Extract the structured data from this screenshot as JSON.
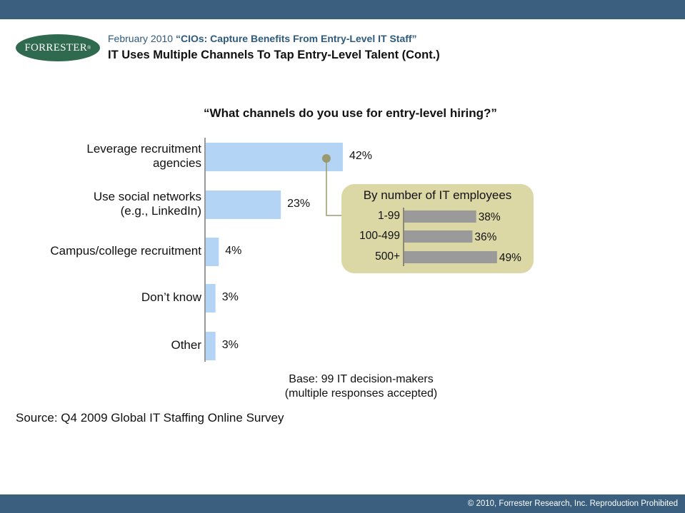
{
  "header": {
    "date": "February 2010",
    "report_title": "“CIOs: Capture Benefits From Entry-Level IT Staff”",
    "slide_title": "IT Uses Multiple Channels To Tap Entry-Level Talent (Cont.)"
  },
  "logo": {
    "text": "FORRESTER",
    "mark": "®"
  },
  "chart_data": [
    {
      "type": "bar",
      "orientation": "horizontal",
      "title": "“What channels do you use for entry-level hiring?”",
      "categories": [
        [
          "Leverage recruitment",
          "agencies"
        ],
        [
          "Use social networks",
          "(e.g., LinkedIn)"
        ],
        [
          "Campus/college recruitment"
        ],
        [
          "Don’t know"
        ],
        [
          "Other"
        ]
      ],
      "values": [
        42,
        23,
        4,
        3,
        3
      ],
      "value_labels": [
        "42%",
        "23%",
        "4%",
        "3%",
        "3%"
      ],
      "unit": "%",
      "bar_color": "#b3d4f5",
      "grid": false,
      "legend": "none"
    },
    {
      "type": "bar",
      "orientation": "horizontal",
      "title": "By number of IT employees",
      "categories": [
        "1-99",
        "100-499",
        "500+"
      ],
      "values": [
        38,
        36,
        49
      ],
      "value_labels": [
        "38%",
        "36%",
        "49%"
      ],
      "unit": "%",
      "bar_color": "#9a9a9a",
      "panel_color": "#dcd8a6",
      "callout_from": "Leverage recruitment agencies",
      "grid": false,
      "legend": "none"
    }
  ],
  "base_note": [
    "Base: 99 IT decision-makers",
    "(multiple responses accepted)"
  ],
  "source": "Source: Q4 2009 Global IT Staffing Online Survey",
  "footer": {
    "copyright": "© 2010, Forrester Research, Inc. Reproduction Prohibited"
  },
  "colors": {
    "bar_accent": "#3b5f7e",
    "header_blue": "#2e5a7c",
    "callout_dot": "#9a9a72"
  }
}
